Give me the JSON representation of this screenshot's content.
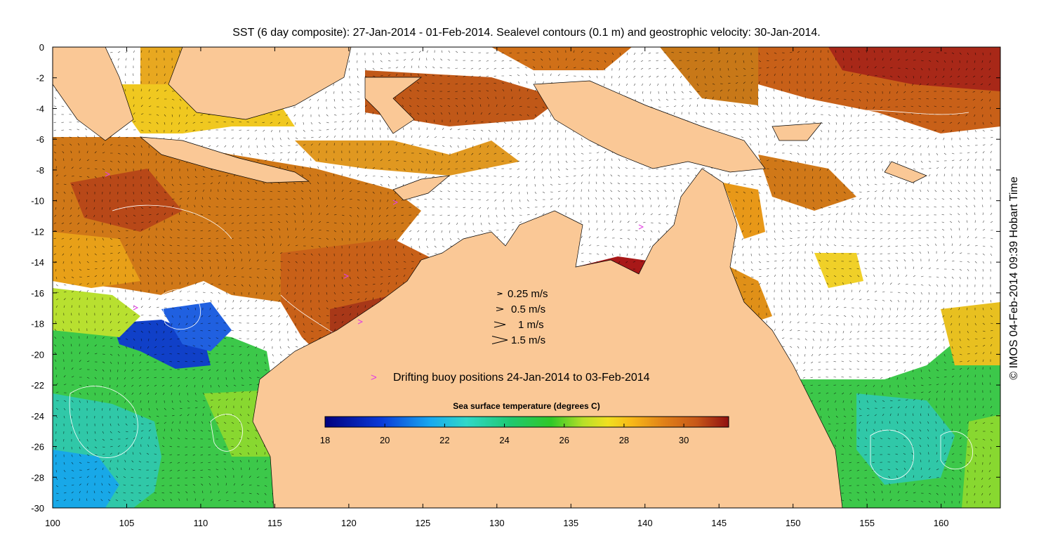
{
  "title": "SST (6 day composite): 27-Jan-2014 - 01-Feb-2014. Sealevel contours (0.1 m) and geostrophic velocity: 30-Jan-2014.",
  "credit": "© IMOS 04-Feb-2014 09:39 Hobart Time",
  "map": {
    "lon_range": [
      100,
      164
    ],
    "lat_range": [
      -30,
      0
    ],
    "lon_ticks": [
      "100",
      "105",
      "110",
      "115",
      "120",
      "125",
      "130",
      "135",
      "140",
      "145",
      "150",
      "155",
      "160"
    ],
    "lat_ticks": [
      "0",
      "-2",
      "-4",
      "-6",
      "-8",
      "-10",
      "-12",
      "-14",
      "-16",
      "-18",
      "-20",
      "-22",
      "-24",
      "-26",
      "-28",
      "-30"
    ],
    "land_color": "#fac896",
    "arrow_color": "#000000",
    "contour_color": "#ffffff"
  },
  "velocity_legend": [
    {
      "label": "0.25 m/s",
      "size": 0.25
    },
    {
      "label": "0.5 m/s",
      "size": 0.5
    },
    {
      "label": "1 m/s",
      "size": 1
    },
    {
      "label": "1.5 m/s",
      "size": 1.5
    }
  ],
  "buoy_legend": {
    "symbol": ">",
    "label": "Drifting buoy positions 24-Jan-2014 to 03-Feb-2014",
    "color": "#e040e0"
  },
  "colorbar": {
    "title": "Sea surface temperature (degrees C)",
    "min": 18,
    "max": 31.5,
    "ticks": [
      "18",
      "20",
      "22",
      "24",
      "26",
      "28",
      "30"
    ]
  }
}
